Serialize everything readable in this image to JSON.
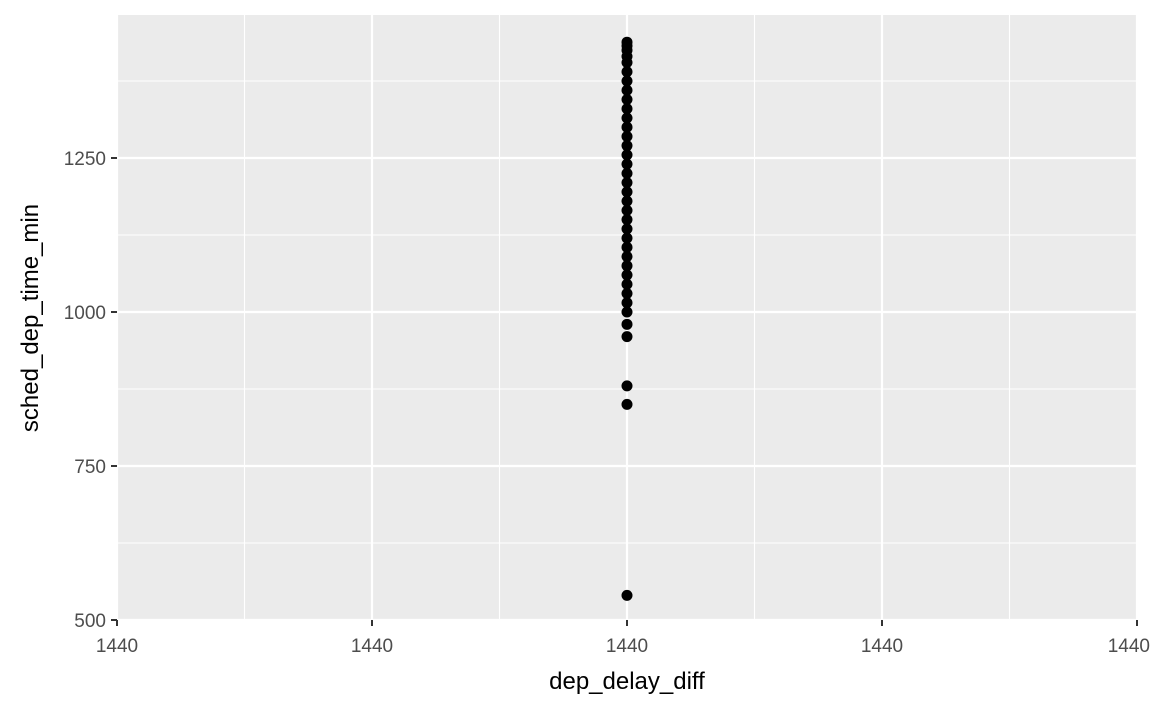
{
  "chart_data": {
    "type": "scatter",
    "title": "",
    "xlabel": "dep_delay_diff",
    "ylabel": "sched_dep_time_min",
    "x_tick_labels": [
      "1440",
      "1440",
      "1440",
      "1440",
      "1440"
    ],
    "y_ticks": [
      500,
      750,
      1000,
      1250
    ],
    "ylim": [
      500,
      1440
    ],
    "grid": true,
    "background": "#ebebeb",
    "point_color": "#000000",
    "points": [
      {
        "x": 1440,
        "y": 540
      },
      {
        "x": 1440,
        "y": 850
      },
      {
        "x": 1440,
        "y": 880
      },
      {
        "x": 1440,
        "y": 960
      },
      {
        "x": 1440,
        "y": 980
      },
      {
        "x": 1440,
        "y": 1000
      },
      {
        "x": 1440,
        "y": 1015
      },
      {
        "x": 1440,
        "y": 1030
      },
      {
        "x": 1440,
        "y": 1045
      },
      {
        "x": 1440,
        "y": 1060
      },
      {
        "x": 1440,
        "y": 1075
      },
      {
        "x": 1440,
        "y": 1090
      },
      {
        "x": 1440,
        "y": 1105
      },
      {
        "x": 1440,
        "y": 1120
      },
      {
        "x": 1440,
        "y": 1135
      },
      {
        "x": 1440,
        "y": 1150
      },
      {
        "x": 1440,
        "y": 1165
      },
      {
        "x": 1440,
        "y": 1180
      },
      {
        "x": 1440,
        "y": 1195
      },
      {
        "x": 1440,
        "y": 1210
      },
      {
        "x": 1440,
        "y": 1225
      },
      {
        "x": 1440,
        "y": 1240
      },
      {
        "x": 1440,
        "y": 1255
      },
      {
        "x": 1440,
        "y": 1270
      },
      {
        "x": 1440,
        "y": 1285
      },
      {
        "x": 1440,
        "y": 1300
      },
      {
        "x": 1440,
        "y": 1315
      },
      {
        "x": 1440,
        "y": 1330
      },
      {
        "x": 1440,
        "y": 1345
      },
      {
        "x": 1440,
        "y": 1360
      },
      {
        "x": 1440,
        "y": 1375
      },
      {
        "x": 1440,
        "y": 1390
      },
      {
        "x": 1440,
        "y": 1405
      },
      {
        "x": 1440,
        "y": 1415
      },
      {
        "x": 1440,
        "y": 1425
      },
      {
        "x": 1440,
        "y": 1432
      },
      {
        "x": 1440,
        "y": 1438
      }
    ]
  }
}
